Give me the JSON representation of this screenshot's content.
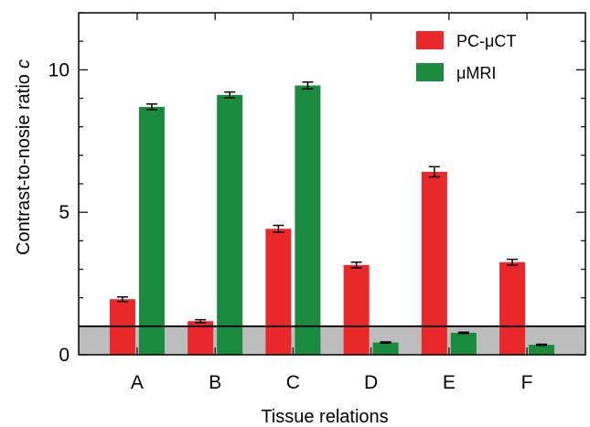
{
  "chart_data": {
    "type": "bar",
    "xlabel": "Tissue relations",
    "ylabel": "Contrast-to-nosie ratio",
    "ylabel_symbol": "c",
    "categories": [
      "A",
      "B",
      "C",
      "D",
      "E",
      "F"
    ],
    "ylim": [
      0,
      12
    ],
    "yticks": [
      0,
      5,
      10
    ],
    "y_tick_labels": [
      "0",
      "5",
      "10"
    ],
    "reference_line": 1.0,
    "shaded_band": [
      0,
      1.0
    ],
    "legend_position": "top-right",
    "series": [
      {
        "name": "PC-μCT",
        "color": "#e8282b",
        "values": [
          1.95,
          1.18,
          4.42,
          3.15,
          6.42,
          3.25
        ],
        "errors": [
          0.08,
          0.05,
          0.12,
          0.1,
          0.18,
          0.1
        ]
      },
      {
        "name": "μMRI",
        "color": "#1a8a3f",
        "values": [
          8.7,
          9.12,
          9.45,
          0.43,
          0.77,
          0.35
        ],
        "errors": [
          0.1,
          0.1,
          0.12,
          0.02,
          0.02,
          0.02
        ]
      }
    ]
  }
}
